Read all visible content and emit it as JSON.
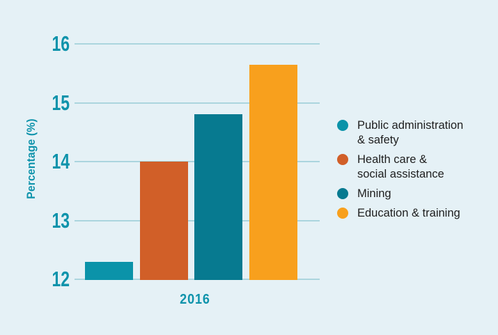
{
  "colors": {
    "background": "#e5f1f6",
    "gridline": "#abd5de",
    "axis_text": "#0e93ab",
    "legend_text": "#1e1e1e"
  },
  "chart_data": {
    "type": "bar",
    "categories": [
      "2016"
    ],
    "xlabel": "",
    "ylabel": "Percentage (%)",
    "ylim": [
      12,
      16
    ],
    "yticks": [
      12,
      13,
      14,
      15,
      16
    ],
    "grid": true,
    "legend_position": "right",
    "series": [
      {
        "name": "Public administration & safety",
        "legend_lines": [
          "Public administration",
          "& safety"
        ],
        "values": [
          12.3
        ],
        "color": "#0b93a9"
      },
      {
        "name": "Health care & social assistance",
        "legend_lines": [
          "Health care &",
          "social assistance"
        ],
        "values": [
          14.0
        ],
        "color": "#d15f28"
      },
      {
        "name": "Mining",
        "legend_lines": [
          "Mining"
        ],
        "values": [
          14.8
        ],
        "color": "#077a90"
      },
      {
        "name": "Education & training",
        "legend_lines": [
          "Education & training"
        ],
        "values": [
          15.65
        ],
        "color": "#f8a01d"
      }
    ]
  }
}
